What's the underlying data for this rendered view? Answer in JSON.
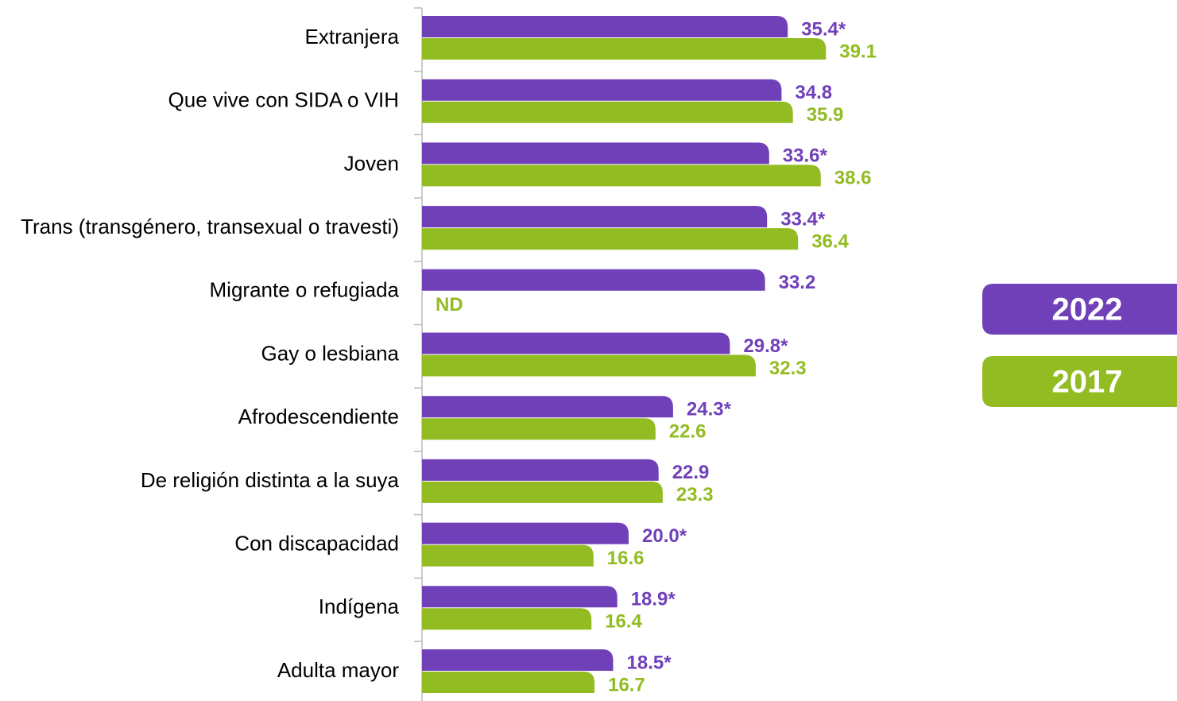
{
  "chart_data": {
    "type": "bar",
    "orientation": "horizontal",
    "categories": [
      "Extranjera",
      "Que vive con SIDA o VIH",
      "Joven",
      "Trans (transgénero, transexual o travesti)",
      "Migrante o refugiada",
      "Gay o lesbiana",
      "Afrodescendiente",
      "De religión distinta a la suya",
      "Con discapacidad",
      "Indígena",
      "Adulta mayor"
    ],
    "series": [
      {
        "name": "2022",
        "color": "#7040b8",
        "values": [
          35.4,
          34.8,
          33.6,
          33.4,
          33.2,
          29.8,
          24.3,
          22.9,
          20.0,
          18.9,
          18.5
        ],
        "value_labels": [
          "35.4*",
          "34.8",
          "33.6*",
          "33.4*",
          "33.2",
          "29.8*",
          "24.3*",
          "22.9",
          "20.0*",
          "18.9*",
          "18.5*"
        ]
      },
      {
        "name": "2017",
        "color": "#92bc22",
        "values": [
          39.1,
          35.9,
          38.6,
          36.4,
          null,
          32.3,
          22.6,
          23.3,
          16.6,
          16.4,
          16.7
        ],
        "value_labels": [
          "39.1",
          "35.9",
          "38.6",
          "36.4",
          "ND",
          "32.3",
          "22.6",
          "23.3",
          "16.6",
          "16.4",
          "16.7"
        ]
      }
    ],
    "legend": "right"
  }
}
